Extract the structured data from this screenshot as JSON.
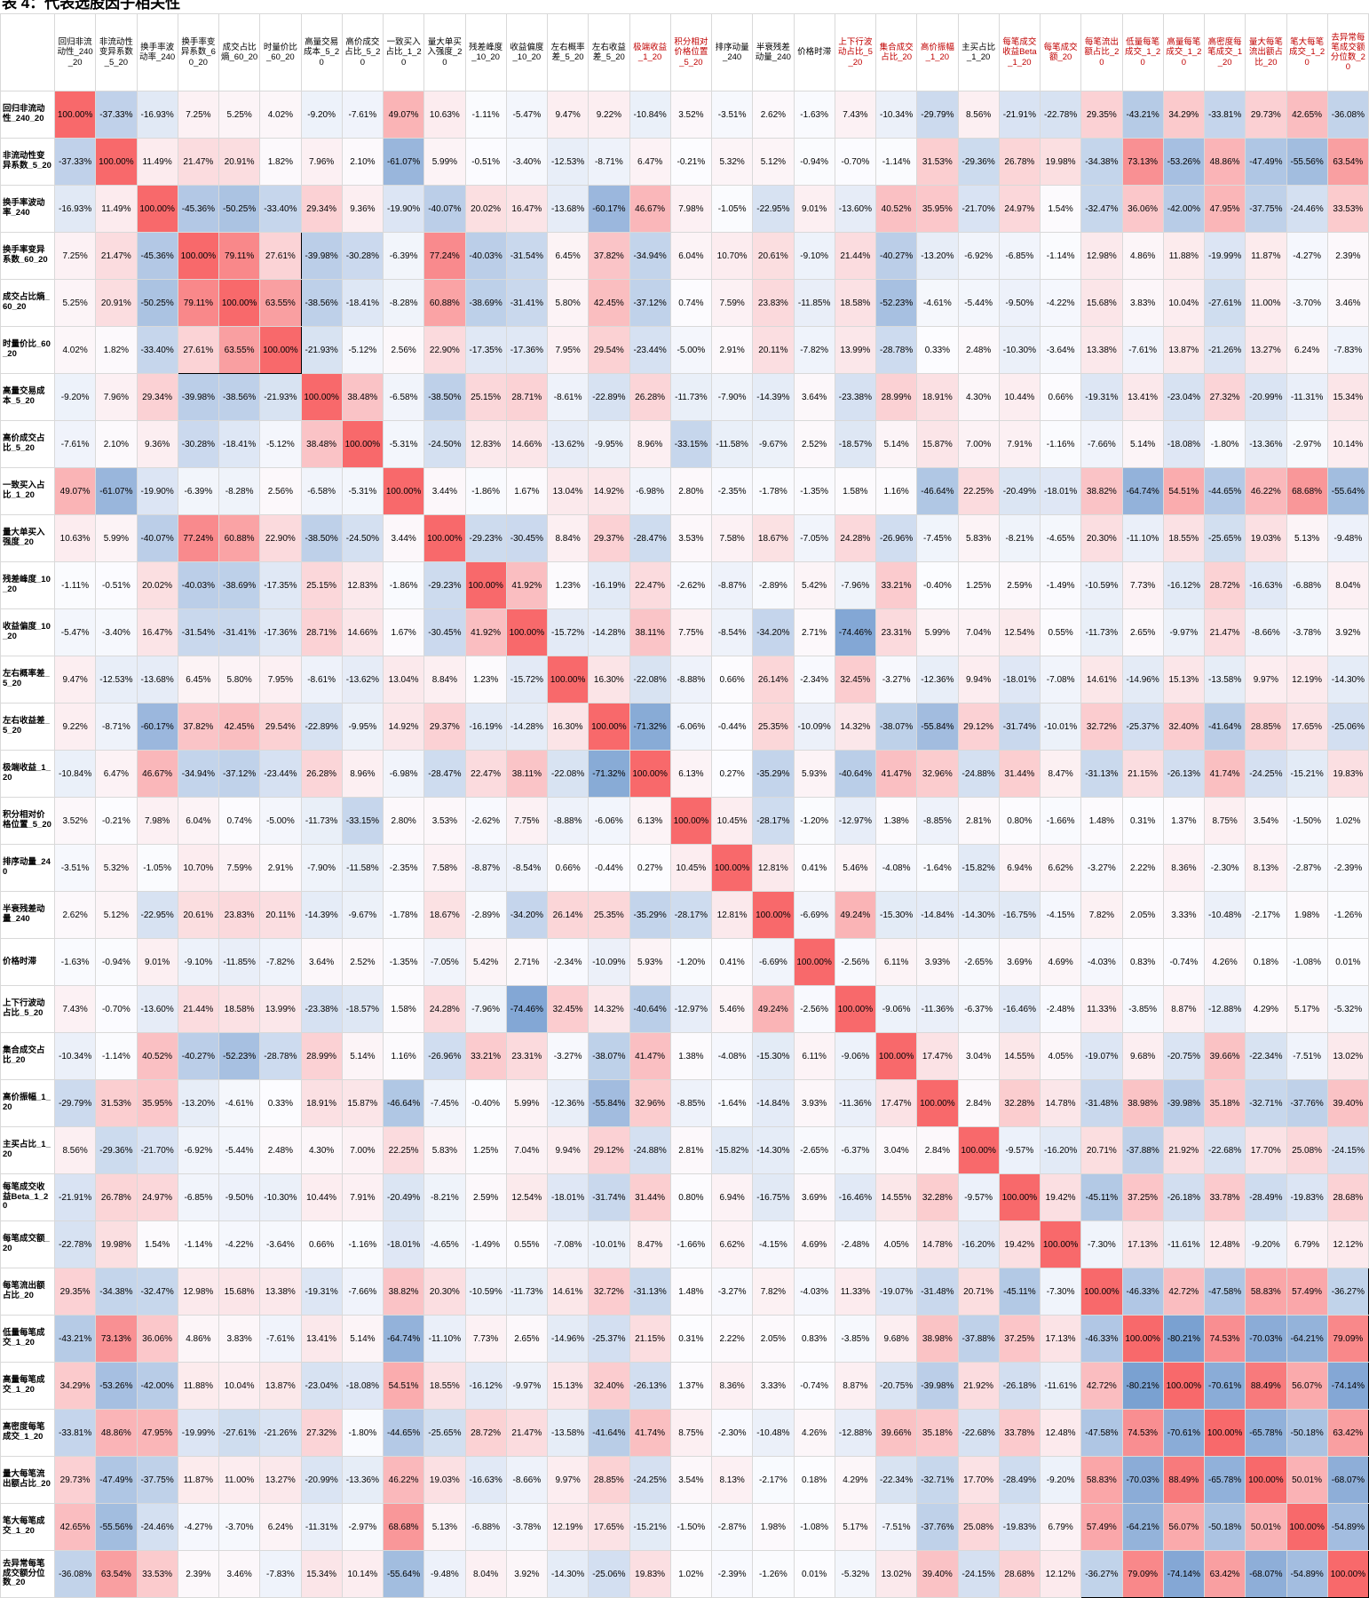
{
  "title": "表 4：代表选股因子相关性",
  "chart_data": {
    "type": "heatmap",
    "title": "表 4：代表选股因子相关性",
    "value_unit": "percent",
    "value_format": "0.00%",
    "symmetric": true,
    "legend_position": "none",
    "grid": true,
    "colormap": {
      "negative": "#5A8AC6",
      "zero": "#FCFCFF",
      "positive": "#F8696B",
      "domain": [
        -100,
        100
      ]
    },
    "labels": [
      "回归非流动性_240_20",
      "非流动性变异系数_5_20",
      "换手率波动率_240",
      "换手率变异系数_60_20",
      "成交占比熵_60_20",
      "时量价比_60_20",
      "高量交易成本_5_20",
      "高价成交占比_5_20",
      "一致买入占比_1_20",
      "量大单买入强度_20",
      "残差峰度_10_20",
      "收益偏度_10_20",
      "左右概率差_5_20",
      "左右收益差_5_20",
      "极端收益_1_20",
      "积分相对价格位置_5_20",
      "排序动量_240",
      "半衰残差动量_240",
      "价格时滞",
      "上下行波动占比_5_20",
      "集合成交占比_20",
      "高价振幅_1_20",
      "主买占比_1_20",
      "每笔成交收益Beta_1_20",
      "每笔成交额_20",
      "每笔流出额占比_20",
      "低量每笔成交_1_20",
      "高量每笔成交_1_20",
      "高密度每笔成交_1_20",
      "量大每笔流出额占比_20",
      "笔大每笔成交_1_20",
      "去异常每笔成交额分位数_20"
    ],
    "red_header_indices": [
      14,
      15,
      19,
      20,
      21,
      23,
      24,
      25,
      26,
      27,
      28,
      29,
      30,
      31
    ],
    "highlight_boxes": [
      {
        "rows": [
          3,
          5
        ],
        "cols": [
          3,
          5
        ]
      },
      {
        "rows": [
          25,
          31
        ],
        "cols": [
          25,
          31
        ]
      }
    ],
    "quadrant_separator": {
      "col_before_index": 8,
      "row_before_index": 8
    },
    "lower_triangle": [
      [
        100.0
      ],
      [
        -37.33,
        100.0
      ],
      [
        -16.93,
        11.49,
        100.0
      ],
      [
        7.25,
        21.47,
        -45.36,
        100.0
      ],
      [
        5.25,
        20.91,
        -50.25,
        79.11,
        100.0
      ],
      [
        4.02,
        1.82,
        -33.4,
        27.61,
        63.55,
        100.0
      ],
      [
        -9.2,
        7.96,
        29.34,
        -39.98,
        -38.56,
        -21.93,
        100.0
      ],
      [
        -7.61,
        2.1,
        9.36,
        -30.28,
        -18.41,
        -5.12,
        38.48,
        100.0
      ],
      [
        49.07,
        -61.07,
        -19.9,
        -6.39,
        -8.28,
        2.56,
        -6.58,
        -5.31,
        100.0
      ],
      [
        10.63,
        5.99,
        -40.07,
        77.24,
        60.88,
        22.9,
        -38.5,
        -24.5,
        3.44,
        100.0
      ],
      [
        -1.11,
        -0.51,
        20.02,
        -40.03,
        -38.69,
        -17.35,
        25.15,
        12.83,
        -1.86,
        -29.23,
        100.0
      ],
      [
        -5.47,
        -3.4,
        16.47,
        -31.54,
        -31.41,
        -17.36,
        28.71,
        14.66,
        1.67,
        -30.45,
        41.92,
        100.0
      ],
      [
        9.47,
        -12.53,
        -13.68,
        6.45,
        5.8,
        7.95,
        -8.61,
        -13.62,
        13.04,
        8.84,
        1.23,
        -15.72,
        100.0
      ],
      [
        9.22,
        -8.71,
        -60.17,
        37.82,
        42.45,
        29.54,
        -22.89,
        -9.95,
        14.92,
        29.37,
        -16.19,
        -14.28,
        16.3,
        100.0
      ],
      [
        -10.84,
        6.47,
        46.67,
        -34.94,
        -37.12,
        -23.44,
        26.28,
        8.96,
        -6.98,
        -28.47,
        22.47,
        38.11,
        -22.08,
        -71.32,
        100.0
      ],
      [
        3.52,
        -0.21,
        7.98,
        6.04,
        0.74,
        -5.0,
        -11.73,
        -33.15,
        2.8,
        3.53,
        -2.62,
        7.75,
        -8.88,
        -6.06,
        6.13,
        100.0
      ],
      [
        -3.51,
        5.32,
        -1.05,
        10.7,
        7.59,
        2.91,
        -7.9,
        -11.58,
        -2.35,
        7.58,
        -8.87,
        -8.54,
        0.66,
        -0.44,
        0.27,
        10.45,
        100.0
      ],
      [
        2.62,
        5.12,
        -22.95,
        20.61,
        23.83,
        20.11,
        -14.39,
        -9.67,
        -1.78,
        18.67,
        -2.89,
        -34.2,
        26.14,
        25.35,
        -35.29,
        -28.17,
        12.81,
        100.0
      ],
      [
        -1.63,
        -0.94,
        9.01,
        -9.1,
        -11.85,
        -7.82,
        3.64,
        2.52,
        -1.35,
        -7.05,
        5.42,
        2.71,
        -2.34,
        -10.09,
        5.93,
        -1.2,
        0.41,
        -6.69,
        100.0
      ],
      [
        7.43,
        -0.7,
        -13.6,
        21.44,
        18.58,
        13.99,
        -23.38,
        -18.57,
        1.58,
        24.28,
        -7.96,
        -74.46,
        32.45,
        14.32,
        -40.64,
        -12.97,
        5.46,
        49.24,
        -2.56,
        100.0
      ],
      [
        -10.34,
        -1.14,
        40.52,
        -40.27,
        -52.23,
        -28.78,
        28.99,
        5.14,
        1.16,
        -26.96,
        33.21,
        23.31,
        -3.27,
        -38.07,
        41.47,
        1.38,
        -4.08,
        -15.3,
        6.11,
        -9.06,
        100.0
      ],
      [
        -29.79,
        31.53,
        35.95,
        -13.2,
        -4.61,
        0.33,
        18.91,
        15.87,
        -46.64,
        -7.45,
        -0.4,
        5.99,
        -12.36,
        -55.84,
        32.96,
        -8.85,
        -1.64,
        -14.84,
        3.93,
        -11.36,
        17.47,
        100.0
      ],
      [
        8.56,
        -29.36,
        -21.7,
        -6.92,
        -5.44,
        2.48,
        4.3,
        7.0,
        22.25,
        5.83,
        1.25,
        7.04,
        9.94,
        29.12,
        -24.88,
        2.81,
        -15.82,
        -14.3,
        -2.65,
        -6.37,
        3.04,
        2.84,
        100.0
      ],
      [
        -21.91,
        26.78,
        24.97,
        -6.85,
        -9.5,
        -10.3,
        10.44,
        7.91,
        -20.49,
        -8.21,
        2.59,
        12.54,
        -18.01,
        -31.74,
        31.44,
        0.8,
        6.94,
        -16.75,
        3.69,
        -16.46,
        14.55,
        32.28,
        -9.57,
        100.0
      ],
      [
        -22.78,
        19.98,
        1.54,
        -1.14,
        -4.22,
        -3.64,
        0.66,
        -1.16,
        -18.01,
        -4.65,
        -1.49,
        0.55,
        -7.08,
        -10.01,
        8.47,
        -1.66,
        6.62,
        -4.15,
        4.69,
        -2.48,
        4.05,
        14.78,
        -16.2,
        19.42,
        100.0
      ],
      [
        29.35,
        -34.38,
        -32.47,
        12.98,
        15.68,
        13.38,
        -19.31,
        -7.66,
        38.82,
        20.3,
        -10.59,
        -11.73,
        14.61,
        32.72,
        -31.13,
        1.48,
        -3.27,
        7.82,
        -4.03,
        11.33,
        -19.07,
        -31.48,
        20.71,
        -45.11,
        -7.3,
        100.0
      ],
      [
        -43.21,
        73.13,
        36.06,
        4.86,
        3.83,
        -7.61,
        13.41,
        5.14,
        -64.74,
        -11.1,
        7.73,
        2.65,
        -14.96,
        -25.37,
        21.15,
        0.31,
        2.22,
        2.05,
        0.83,
        -3.85,
        9.68,
        38.98,
        -37.88,
        37.25,
        17.13,
        -46.33,
        100.0
      ],
      [
        34.29,
        -53.26,
        -42.0,
        11.88,
        10.04,
        13.87,
        -23.04,
        -18.08,
        54.51,
        18.55,
        -16.12,
        -9.97,
        15.13,
        32.4,
        -26.13,
        1.37,
        8.36,
        3.33,
        -0.74,
        8.87,
        -20.75,
        -39.98,
        21.92,
        -26.18,
        -11.61,
        42.72,
        -80.21,
        100.0
      ],
      [
        -33.81,
        48.86,
        47.95,
        -19.99,
        -27.61,
        -21.26,
        27.32,
        -1.8,
        -44.65,
        -25.65,
        28.72,
        21.47,
        -13.58,
        -41.64,
        41.74,
        8.75,
        -2.3,
        -10.48,
        4.26,
        -12.88,
        39.66,
        35.18,
        -22.68,
        33.78,
        12.48,
        -47.58,
        74.53,
        -70.61,
        100.0
      ],
      [
        29.73,
        -47.49,
        -37.75,
        11.87,
        11.0,
        13.27,
        -20.99,
        -13.36,
        46.22,
        19.03,
        -16.63,
        -8.66,
        9.97,
        28.85,
        -24.25,
        3.54,
        8.13,
        -2.17,
        0.18,
        4.29,
        -22.34,
        -32.71,
        17.7,
        -28.49,
        -9.2,
        58.83,
        -70.03,
        88.49,
        -65.78,
        100.0
      ],
      [
        42.65,
        -55.56,
        -24.46,
        -4.27,
        -3.7,
        6.24,
        -11.31,
        -2.97,
        68.68,
        5.13,
        -6.88,
        -3.78,
        12.19,
        17.65,
        -15.21,
        -1.5,
        -2.87,
        1.98,
        -1.08,
        5.17,
        -7.51,
        -37.76,
        25.08,
        -19.83,
        6.79,
        57.49,
        -64.21,
        56.07,
        -50.18,
        50.01,
        100.0
      ],
      [
        -36.08,
        63.54,
        33.53,
        2.39,
        3.46,
        -7.83,
        15.34,
        10.14,
        -55.64,
        -9.48,
        8.04,
        3.92,
        -14.3,
        -25.06,
        19.83,
        1.02,
        -2.39,
        -1.26,
        0.01,
        -5.32,
        13.02,
        39.4,
        -24.15,
        28.68,
        12.12,
        -36.27,
        79.09,
        -74.14,
        63.42,
        -68.07,
        -54.89,
        100.0
      ]
    ]
  }
}
